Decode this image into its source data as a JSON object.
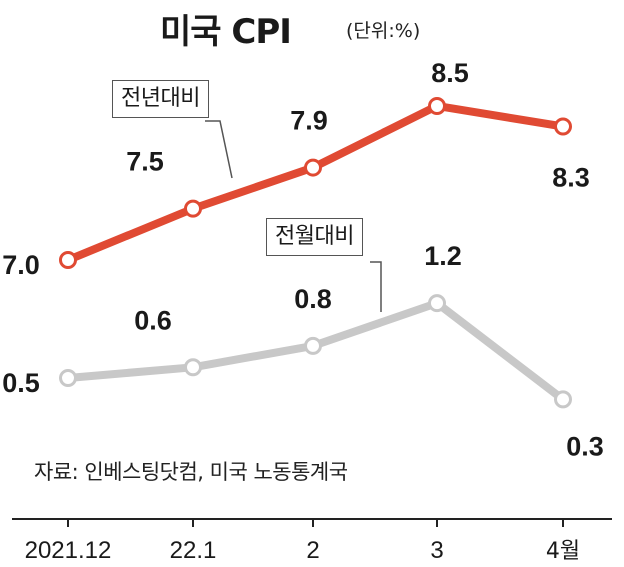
{
  "header": {
    "title": "미국 CPI",
    "unit": "(단위:%)"
  },
  "source": "자료: 인베스팅닷컴, 미국 노동통계국",
  "colors": {
    "yoy_line": "#E04A33",
    "mom_line": "#C8C8C8"
  },
  "chart_data": {
    "type": "line",
    "title": "미국 CPI",
    "unit": "(단위:%)",
    "categories": [
      "2021.12",
      "22.1",
      "2",
      "3",
      "4월"
    ],
    "series": [
      {
        "name": "전년대비",
        "values": [
          7.0,
          7.5,
          7.9,
          8.5,
          8.3
        ],
        "color": "#E04A33"
      },
      {
        "name": "전월대비",
        "values": [
          0.5,
          0.6,
          0.8,
          1.2,
          0.3
        ],
        "color": "#C8C8C8"
      }
    ],
    "grid": false,
    "legend": "inline callouts"
  }
}
